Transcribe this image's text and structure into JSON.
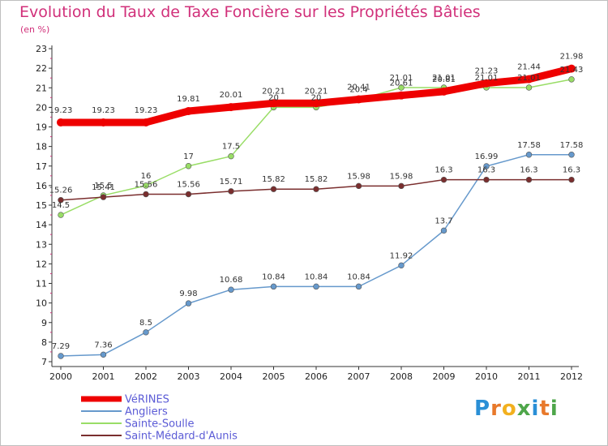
{
  "title": "Evolution du Taux de Taxe Foncière sur les Propriétés Bâties",
  "subtitle": "(en %)",
  "logo": {
    "letters": [
      "P",
      "r",
      "o",
      "x",
      "i",
      "t",
      "i"
    ],
    "colors": [
      "#2a8fd6",
      "#e8792b",
      "#f2b01e",
      "#4ea64a",
      "#2a8fd6",
      "#e8792b",
      "#4ea64a"
    ]
  },
  "chart_data": {
    "type": "line",
    "x": [
      2000,
      2001,
      2002,
      2003,
      2004,
      2005,
      2006,
      2007,
      2008,
      2009,
      2010,
      2011,
      2012
    ],
    "x_tick_labels": [
      "2000",
      "2001",
      "2002",
      "2003",
      "2004",
      "2005",
      "2006",
      "2007",
      "2008",
      "2009",
      "2010",
      "2011",
      "2012"
    ],
    "ylim": [
      7,
      23
    ],
    "y_ticks": [
      7,
      8,
      9,
      10,
      11,
      12,
      13,
      14,
      15,
      16,
      17,
      18,
      19,
      20,
      21,
      22,
      23
    ],
    "y_tick_labels": [
      "7",
      "8",
      "9",
      "10",
      "11",
      "12",
      "13",
      "14",
      "15",
      "16",
      "17",
      "18",
      "19",
      "20",
      "21",
      "22",
      "23"
    ],
    "grid": false,
    "legend": "bottom-left",
    "series": [
      {
        "name": "VéRINES",
        "color": "#ee0000",
        "width": 9,
        "values": [
          19.23,
          19.23,
          19.23,
          19.81,
          20.01,
          20.21,
          20.21,
          20.41,
          20.61,
          20.81,
          21.23,
          21.44,
          21.98
        ],
        "labels": [
          "19.23",
          "19.23",
          "19.23",
          "19.81",
          "20.01",
          "20.21",
          "20.21",
          "20.41",
          "20.61",
          "20.81",
          "21.23",
          "21.44",
          "21.98"
        ]
      },
      {
        "name": "Angliers",
        "color": "#6699cc",
        "width": 1.5,
        "values": [
          7.29,
          7.36,
          8.5,
          9.98,
          10.68,
          10.84,
          10.84,
          10.84,
          11.92,
          13.7,
          16.99,
          17.58,
          17.58
        ],
        "labels": [
          "7.29",
          "7.36",
          "8.5",
          "9.98",
          "10.68",
          "10.84",
          "10.84",
          "10.84",
          "11.92",
          "13.7",
          "16.99",
          "17.58",
          "17.58"
        ]
      },
      {
        "name": "Sainte-Soulle",
        "color": "#99dd66",
        "width": 1.5,
        "values": [
          14.5,
          15.5,
          16,
          17,
          17.5,
          20,
          20,
          20.4,
          21.01,
          21.01,
          21.01,
          21.01,
          21.43
        ],
        "labels": [
          "14.5",
          "15.5",
          "16",
          "17",
          "17.5",
          "20",
          "20",
          "20.4",
          "21.01",
          "21.01",
          "21.01",
          "21.01",
          "21.43"
        ]
      },
      {
        "name": "Saint-Médard-d'Aunis",
        "color": "#7a2e2e",
        "width": 1.5,
        "values": [
          15.26,
          15.41,
          15.56,
          15.56,
          15.71,
          15.82,
          15.82,
          15.98,
          15.98,
          16.3,
          16.3,
          16.3,
          16.3
        ],
        "labels": [
          "15.26",
          "15.41",
          "15.56",
          "15.56",
          "15.71",
          "15.82",
          "15.82",
          "15.98",
          "15.98",
          "16.3",
          "16.3",
          "16.3",
          "16.3"
        ]
      }
    ]
  }
}
